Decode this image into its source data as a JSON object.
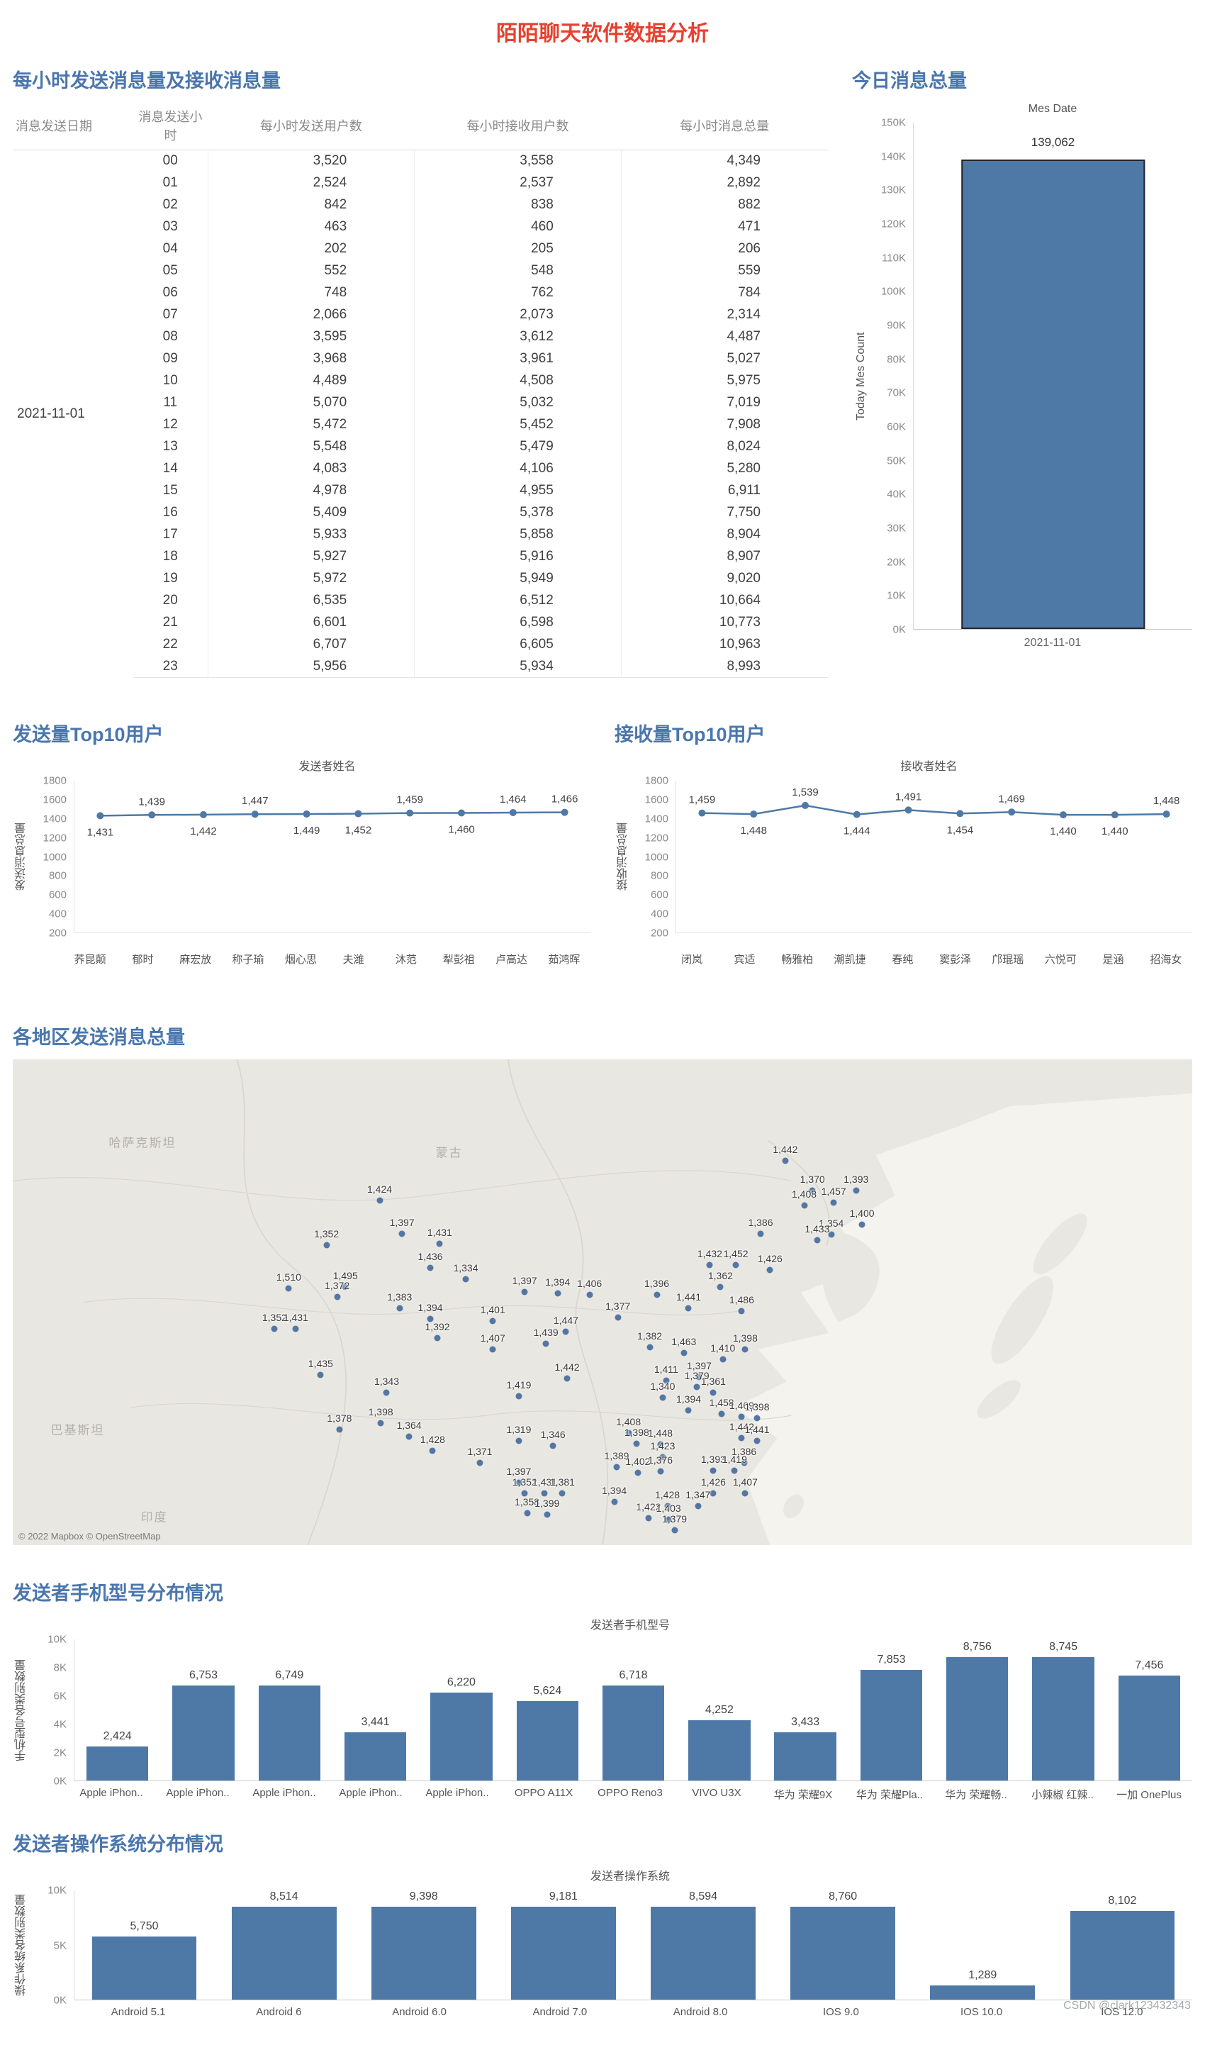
{
  "page": {
    "title": "陌陌聊天软件数据分析",
    "watermark": "CSDN @clark123432343"
  },
  "colors": {
    "accent": "#4e79a7",
    "dark": "#23262b",
    "red": "#e8402f",
    "blue": "#4a76ad",
    "axis": "#8a8a8a",
    "dot": "#44699f"
  },
  "chart_data": [
    {
      "id": "hourly_table",
      "type": "table",
      "section_title": "每小时发送消息量及接收消息量",
      "columns": [
        "消息发送日期",
        "消息发送小时",
        "每小时发送用户数",
        "每小时接收用户数",
        "每小时消息总量"
      ],
      "date": "2021-11-01",
      "rows": [
        [
          "00",
          "3,520",
          "3,558",
          "4,349"
        ],
        [
          "01",
          "2,524",
          "2,537",
          "2,892"
        ],
        [
          "02",
          "842",
          "838",
          "882"
        ],
        [
          "03",
          "463",
          "460",
          "471"
        ],
        [
          "04",
          "202",
          "205",
          "206"
        ],
        [
          "05",
          "552",
          "548",
          "559"
        ],
        [
          "06",
          "748",
          "762",
          "784"
        ],
        [
          "07",
          "2,066",
          "2,073",
          "2,314"
        ],
        [
          "08",
          "3,595",
          "3,612",
          "4,487"
        ],
        [
          "09",
          "3,968",
          "3,961",
          "5,027"
        ],
        [
          "10",
          "4,489",
          "4,508",
          "5,975"
        ],
        [
          "11",
          "5,070",
          "5,032",
          "7,019"
        ],
        [
          "12",
          "5,472",
          "5,452",
          "7,908"
        ],
        [
          "13",
          "5,548",
          "5,479",
          "8,024"
        ],
        [
          "14",
          "4,083",
          "4,106",
          "5,280"
        ],
        [
          "15",
          "4,978",
          "4,955",
          "6,911"
        ],
        [
          "16",
          "5,409",
          "5,378",
          "7,750"
        ],
        [
          "17",
          "5,933",
          "5,858",
          "8,904"
        ],
        [
          "18",
          "5,927",
          "5,916",
          "8,907"
        ],
        [
          "19",
          "5,972",
          "5,949",
          "9,020"
        ],
        [
          "20",
          "6,535",
          "6,512",
          "10,664"
        ],
        [
          "21",
          "6,601",
          "6,598",
          "10,773"
        ],
        [
          "22",
          "6,707",
          "6,605",
          "10,963"
        ],
        [
          "23",
          "5,956",
          "5,934",
          "8,993"
        ]
      ]
    },
    {
      "id": "today_total",
      "type": "bar",
      "section_title": "今日消息总量",
      "title": "Mes Date",
      "ylabel": "Today Mes Count",
      "categories": [
        "2021-11-01"
      ],
      "values": [
        139062
      ],
      "value_labels": [
        "139,062"
      ],
      "ylim": [
        0,
        150000
      ],
      "y_ticks": [
        "150K",
        "140K",
        "130K",
        "120K",
        "110K",
        "100K",
        "90K",
        "80K",
        "70K",
        "60K",
        "50K",
        "40K",
        "30K",
        "20K",
        "10K",
        "0K"
      ]
    },
    {
      "id": "top_senders",
      "type": "line",
      "section_title": "发送量Top10用户",
      "title": "发送者姓名",
      "ylabel": "发送消息总量",
      "categories": [
        "荞昆颠",
        "郁时",
        "麻宏放",
        "称子瑜",
        "烟心思",
        "夫潍",
        "沐范",
        "犁彭祖",
        "卢高达",
        "茹鸿晖"
      ],
      "values": [
        1431,
        1439,
        1442,
        1447,
        1449,
        1452,
        1459,
        1460,
        1464,
        1466
      ],
      "value_labels": [
        "1,431",
        "1,439",
        "1,442",
        "1,447",
        "1,449",
        "1,452",
        "1,459",
        "1,460",
        "1,464",
        "1,466"
      ],
      "ylim": [
        200,
        1800
      ],
      "y_ticks": [
        "1800",
        "1600",
        "1400",
        "1200",
        "1000",
        "800",
        "600",
        "400",
        "200"
      ]
    },
    {
      "id": "top_receivers",
      "type": "line",
      "section_title": "接收量Top10用户",
      "title": "接收者姓名",
      "ylabel": "接收消息总量",
      "categories": [
        "闭岚",
        "宾适",
        "畅雅柏",
        "潮凯捷",
        "春纯",
        "窦彭泽",
        "邝琨瑶",
        "六悦可",
        "是涵",
        "招海女"
      ],
      "values": [
        1459,
        1448,
        1539,
        1444,
        1491,
        1454,
        1469,
        1440,
        1440,
        1448
      ],
      "value_labels": [
        "1,459",
        "1,448",
        "1,539",
        "1,444",
        "1,491",
        "1,454",
        "1,469",
        "1,440",
        "1,440",
        "1,448"
      ],
      "ylim": [
        200,
        1800
      ],
      "y_ticks": [
        "1800",
        "1600",
        "1400",
        "1200",
        "1000",
        "800",
        "600",
        "400",
        "200"
      ]
    },
    {
      "id": "region_map",
      "type": "scatter",
      "section_title": "各地区发送消息总量",
      "attribution": "© 2022 Mapbox © OpenStreetMap",
      "background_labels": [
        {
          "text": "哈萨克斯坦",
          "x": 11,
          "y": 17
        },
        {
          "text": "蒙古",
          "x": 37,
          "y": 19
        },
        {
          "text": "巴基斯坦",
          "x": 5.5,
          "y": 76
        },
        {
          "text": "印度",
          "x": 12,
          "y": 94
        }
      ],
      "points": [
        {
          "x": 65.5,
          "y": 20.9,
          "l": "1,442"
        },
        {
          "x": 67.8,
          "y": 27.0,
          "l": "1,370"
        },
        {
          "x": 71.5,
          "y": 27.0,
          "l": "1,393"
        },
        {
          "x": 69.6,
          "y": 29.5,
          "l": "1,457"
        },
        {
          "x": 67.1,
          "y": 30.1,
          "l": "1,408"
        },
        {
          "x": 69.4,
          "y": 36.1,
          "l": "1,354"
        },
        {
          "x": 68.2,
          "y": 37.2,
          "l": "1,433"
        },
        {
          "x": 72.0,
          "y": 34.0,
          "l": "1,400"
        },
        {
          "x": 63.4,
          "y": 35.9,
          "l": "1,386"
        },
        {
          "x": 31.1,
          "y": 29.1,
          "l": "1,424"
        },
        {
          "x": 33.0,
          "y": 35.9,
          "l": "1,397"
        },
        {
          "x": 26.6,
          "y": 38.2,
          "l": "1,352"
        },
        {
          "x": 36.2,
          "y": 38.0,
          "l": "1,431"
        },
        {
          "x": 35.4,
          "y": 42.9,
          "l": "1,436"
        },
        {
          "x": 38.4,
          "y": 45.3,
          "l": "1,334"
        },
        {
          "x": 59.1,
          "y": 42.4,
          "l": "1,432"
        },
        {
          "x": 61.3,
          "y": 42.4,
          "l": "1,452"
        },
        {
          "x": 64.2,
          "y": 43.4,
          "l": "1,426"
        },
        {
          "x": 23.4,
          "y": 47.1,
          "l": "1,510"
        },
        {
          "x": 28.2,
          "y": 46.9,
          "l": "1,495"
        },
        {
          "x": 27.5,
          "y": 48.9,
          "l": "1,372"
        },
        {
          "x": 60.0,
          "y": 46.9,
          "l": "1,362"
        },
        {
          "x": 43.4,
          "y": 47.9,
          "l": "1,397"
        },
        {
          "x": 46.2,
          "y": 48.2,
          "l": "1,394"
        },
        {
          "x": 48.9,
          "y": 48.4,
          "l": "1,406"
        },
        {
          "x": 54.6,
          "y": 48.4,
          "l": "1,396"
        },
        {
          "x": 57.3,
          "y": 51.3,
          "l": "1,441"
        },
        {
          "x": 61.8,
          "y": 51.8,
          "l": "1,486"
        },
        {
          "x": 32.8,
          "y": 51.3,
          "l": "1,383"
        },
        {
          "x": 35.4,
          "y": 53.4,
          "l": "1,394"
        },
        {
          "x": 40.7,
          "y": 53.9,
          "l": "1,401"
        },
        {
          "x": 51.3,
          "y": 53.1,
          "l": "1,377"
        },
        {
          "x": 22.2,
          "y": 55.5,
          "l": "1,352"
        },
        {
          "x": 24.0,
          "y": 55.5,
          "l": "1,431"
        },
        {
          "x": 46.9,
          "y": 56.0,
          "l": "1,447"
        },
        {
          "x": 45.2,
          "y": 58.6,
          "l": "1,439"
        },
        {
          "x": 54.0,
          "y": 59.2,
          "l": "1,382"
        },
        {
          "x": 56.9,
          "y": 60.5,
          "l": "1,463"
        },
        {
          "x": 62.1,
          "y": 59.7,
          "l": "1,398"
        },
        {
          "x": 36.0,
          "y": 57.3,
          "l": "1,392"
        },
        {
          "x": 40.7,
          "y": 59.7,
          "l": "1,407"
        },
        {
          "x": 60.2,
          "y": 61.8,
          "l": "1,410"
        },
        {
          "x": 26.1,
          "y": 64.9,
          "l": "1,435"
        },
        {
          "x": 47.0,
          "y": 65.7,
          "l": "1,442"
        },
        {
          "x": 55.4,
          "y": 66.2,
          "l": "1,411"
        },
        {
          "x": 58.2,
          "y": 65.4,
          "l": "1,397"
        },
        {
          "x": 42.9,
          "y": 69.4,
          "l": "1,419"
        },
        {
          "x": 55.1,
          "y": 69.6,
          "l": "1,340"
        },
        {
          "x": 59.4,
          "y": 68.6,
          "l": "1,361"
        },
        {
          "x": 58.0,
          "y": 67.5,
          "l": "1,379"
        },
        {
          "x": 31.7,
          "y": 68.6,
          "l": "1,343"
        },
        {
          "x": 57.3,
          "y": 72.3,
          "l": "1,394"
        },
        {
          "x": 60.1,
          "y": 73.0,
          "l": "1,458"
        },
        {
          "x": 61.8,
          "y": 73.6,
          "l": "1,469"
        },
        {
          "x": 63.1,
          "y": 73.8,
          "l": "1,398"
        },
        {
          "x": 31.2,
          "y": 74.9,
          "l": "1,398"
        },
        {
          "x": 27.7,
          "y": 76.2,
          "l": "1,378"
        },
        {
          "x": 33.6,
          "y": 77.7,
          "l": "1,364"
        },
        {
          "x": 42.9,
          "y": 78.5,
          "l": "1,319"
        },
        {
          "x": 35.6,
          "y": 80.6,
          "l": "1,428"
        },
        {
          "x": 52.2,
          "y": 77.0,
          "l": "1,408"
        },
        {
          "x": 52.9,
          "y": 79.1,
          "l": "1,398"
        },
        {
          "x": 54.9,
          "y": 79.3,
          "l": "1,448"
        },
        {
          "x": 45.8,
          "y": 79.6,
          "l": "1,346"
        },
        {
          "x": 39.6,
          "y": 83.0,
          "l": "1,371"
        },
        {
          "x": 55.1,
          "y": 81.9,
          "l": "1,423"
        },
        {
          "x": 62.0,
          "y": 83.0,
          "l": "1,386"
        },
        {
          "x": 51.2,
          "y": 84.0,
          "l": "1,389"
        },
        {
          "x": 53.0,
          "y": 85.1,
          "l": "1,402"
        },
        {
          "x": 54.9,
          "y": 84.8,
          "l": "1,376"
        },
        {
          "x": 59.4,
          "y": 84.6,
          "l": "1,393"
        },
        {
          "x": 61.2,
          "y": 84.6,
          "l": "1,419"
        },
        {
          "x": 61.8,
          "y": 78.0,
          "l": "1,442"
        },
        {
          "x": 63.1,
          "y": 78.5,
          "l": "1,441"
        },
        {
          "x": 42.9,
          "y": 87.2,
          "l": "1,397"
        },
        {
          "x": 43.4,
          "y": 89.3,
          "l": "1,352"
        },
        {
          "x": 45.1,
          "y": 89.3,
          "l": "1,431"
        },
        {
          "x": 46.6,
          "y": 89.3,
          "l": "1,381"
        },
        {
          "x": 59.4,
          "y": 89.3,
          "l": "1,426"
        },
        {
          "x": 62.1,
          "y": 89.3,
          "l": "1,407"
        },
        {
          "x": 51.0,
          "y": 91.1,
          "l": "1,394"
        },
        {
          "x": 55.5,
          "y": 91.9,
          "l": "1,428"
        },
        {
          "x": 58.1,
          "y": 91.9,
          "l": "1,347"
        },
        {
          "x": 43.6,
          "y": 93.5,
          "l": "1,358"
        },
        {
          "x": 45.3,
          "y": 93.7,
          "l": "1,399"
        },
        {
          "x": 53.9,
          "y": 94.5,
          "l": "1,422"
        },
        {
          "x": 55.6,
          "y": 94.8,
          "l": "1,403"
        },
        {
          "x": 56.1,
          "y": 96.9,
          "l": "1,379"
        }
      ]
    },
    {
      "id": "phone_models",
      "type": "bar",
      "section_title": "发送者手机型号分布情况",
      "title": "发送者手机型号",
      "ylabel": "手机型号各类别数量",
      "categories": [
        "Apple iPhon..",
        "Apple iPhon..",
        "Apple iPhon..",
        "Apple iPhon..",
        "Apple iPhon..",
        "OPPO A11X",
        "OPPO Reno3",
        "VIVO U3X",
        "华为 荣耀9X",
        "华为 荣耀Pla..",
        "华为 荣耀畅..",
        "小辣椒 红辣..",
        "一加 OnePlus"
      ],
      "values": [
        2424,
        6753,
        6749,
        3441,
        6220,
        5624,
        6718,
        4252,
        3433,
        7853,
        8756,
        8745,
        7456
      ],
      "value_labels": [
        "2,424",
        "6,753",
        "6,749",
        "3,441",
        "6,220",
        "5,624",
        "6,718",
        "4,252",
        "3,433",
        "7,853",
        "8,756",
        "8,745",
        "7,456"
      ],
      "ylim": [
        0,
        10000
      ],
      "y_ticks": [
        "10K",
        "8K",
        "6K",
        "4K",
        "2K",
        "0K"
      ]
    },
    {
      "id": "os_distribution",
      "type": "bar",
      "section_title": "发送者操作系统分布情况",
      "title": "发送者操作系统",
      "ylabel": "操作系统各类别数量",
      "categories": [
        "Android 5.1",
        "Android 6",
        "Android 6.0",
        "Android 7.0",
        "Android 8.0",
        "IOS 9.0",
        "IOS 10.0",
        "IOS 12.0"
      ],
      "values": [
        5750,
        8514,
        9398,
        9181,
        8594,
        8760,
        1289,
        8102
      ],
      "value_labels": [
        "5,750",
        "8,514",
        "9,398",
        "9,181",
        "8,594",
        "8,760",
        "1,289",
        "8,102"
      ],
      "ylim": [
        0,
        10000
      ],
      "y_ticks": [
        "10K",
        "5K",
        "0K"
      ]
    }
  ]
}
